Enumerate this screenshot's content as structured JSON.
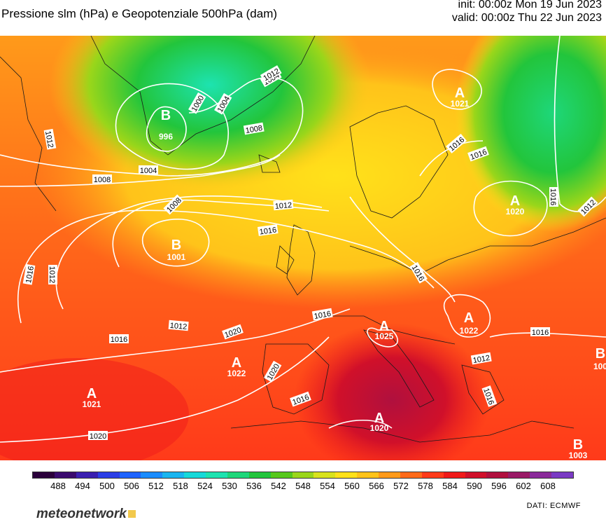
{
  "header": {
    "title": "Pressione slm (hPa) e Geopotenziale 500hPa (dam)",
    "init": "init: 00:00z Mon 19 Jun 2023",
    "valid": "valid: 00:00z Thu 22 Jun 2023"
  },
  "map": {
    "centers": [
      {
        "letter": "B",
        "value": "996"
      },
      {
        "letter": "B",
        "value": "1001"
      },
      {
        "letter": "A",
        "value": "1021"
      },
      {
        "letter": "A",
        "value": "1020"
      },
      {
        "letter": "A",
        "value": "1022"
      },
      {
        "letter": "A",
        "value": "1025"
      },
      {
        "letter": "A",
        "value": "1022"
      },
      {
        "letter": "A",
        "value": "1021"
      },
      {
        "letter": "A",
        "value": "1020"
      },
      {
        "letter": "B",
        "value": "1003"
      },
      {
        "letter": "B",
        "value": "100"
      }
    ],
    "isobar_labels": [
      "1000",
      "1004",
      "1004",
      "1008",
      "1004",
      "1008",
      "1008",
      "1012",
      "1012",
      "1016",
      "1012",
      "1016",
      "1012",
      "1016",
      "1016",
      "1016",
      "1016",
      "1020",
      "1020",
      "1016",
      "1016",
      "1012",
      "1016",
      "1020",
      "1016",
      "1016",
      "1012",
      "1012"
    ]
  },
  "legend": {
    "ticks": [
      "488",
      "494",
      "500",
      "506",
      "512",
      "518",
      "524",
      "530",
      "536",
      "542",
      "548",
      "554",
      "560",
      "566",
      "572",
      "578",
      "584",
      "590",
      "596",
      "602",
      "608"
    ],
    "colors": [
      "#2b003b",
      "#3a0a6e",
      "#3a1fb0",
      "#2b3ee6",
      "#1e63ff",
      "#1a8cff",
      "#19b5f0",
      "#16d9d9",
      "#1de3b0",
      "#1ed77a",
      "#22c53c",
      "#56c81c",
      "#9ad61a",
      "#d8e21c",
      "#ffe11a",
      "#ffc31a",
      "#ff9a1a",
      "#ff6a1a",
      "#ff3a1a",
      "#f01a1a",
      "#d0102a",
      "#b0103e",
      "#9a1a66",
      "#8a2a9a",
      "#7a3ac4"
    ],
    "source": "DATI:  ECMWF",
    "logo": "meteonetwork"
  }
}
